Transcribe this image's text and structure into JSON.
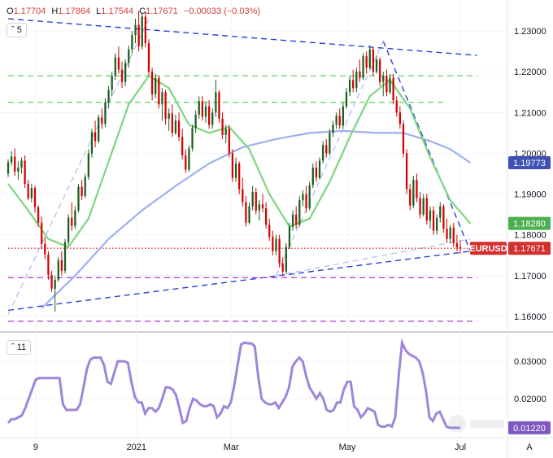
{
  "header": {
    "o_label": "O",
    "o_value": "1.17704",
    "h_label": "H",
    "h_value": "1.17864",
    "l_label": "L",
    "l_value": "1.17544",
    "c_label": "C",
    "c_value": "1.17671",
    "change": "−0.00033 (−0.03%)",
    "main_period": "5",
    "sub_period": "11",
    "icons": [
      "chevron-up-icon",
      "chevron-up-icon"
    ]
  },
  "colors": {
    "bull": "#1b5e20",
    "bear": "#d50000",
    "sma_fast": "#7ed67e",
    "sma_slow": "#9db0ee",
    "trend": "#2a3fd6",
    "support": "#6bd86b",
    "level": "#b24bd6",
    "last": "#d32f2f",
    "indicator": "#9e86d9"
  },
  "badges": {
    "symbol": "EURUSD",
    "last": "1.17671",
    "sma_fast": "1.18280",
    "sma_slow": "1.19773",
    "indicator": "0.01220"
  },
  "chart_data": [
    {
      "type": "candlestick",
      "title": "EURUSD",
      "x_ticks": [
        "9",
        "2021",
        "Mar",
        "May",
        "Jul"
      ],
      "y_ticks": [
        "1.23000",
        "1.22000",
        "1.21000",
        "1.20000",
        "1.19000",
        "1.18000",
        "1.17000",
        "1.16000"
      ],
      "ylim": [
        1.157,
        1.236
      ],
      "candles": [
        [
          1.195,
          1.1985,
          1.1942,
          1.1978
        ],
        [
          1.1978,
          1.2005,
          1.197,
          1.1992
        ],
        [
          1.1992,
          1.2012,
          1.1945,
          1.1955
        ],
        [
          1.1955,
          1.198,
          1.1935,
          1.1965
        ],
        [
          1.1965,
          1.199,
          1.195,
          1.1982
        ],
        [
          1.1982,
          1.1995,
          1.1915,
          1.1925
        ],
        [
          1.1925,
          1.1935,
          1.1885,
          1.189
        ],
        [
          1.189,
          1.1925,
          1.188,
          1.1915
        ],
        [
          1.1915,
          1.192,
          1.1855,
          1.1868
        ],
        [
          1.1868,
          1.1872,
          1.182,
          1.183
        ],
        [
          1.183,
          1.1845,
          1.1765,
          1.1778
        ],
        [
          1.1778,
          1.1795,
          1.174,
          1.1752
        ],
        [
          1.1752,
          1.176,
          1.169,
          1.1702
        ],
        [
          1.1702,
          1.1712,
          1.166,
          1.1668
        ],
        [
          1.1668,
          1.17,
          1.1612,
          1.169
        ],
        [
          1.169,
          1.1745,
          1.1685,
          1.1738
        ],
        [
          1.1738,
          1.176,
          1.17,
          1.1712
        ],
        [
          1.1712,
          1.179,
          1.1705,
          1.1782
        ],
        [
          1.1782,
          1.185,
          1.1775,
          1.1842
        ],
        [
          1.1842,
          1.188,
          1.181,
          1.1822
        ],
        [
          1.1822,
          1.187,
          1.1815,
          1.186
        ],
        [
          1.186,
          1.1925,
          1.1855,
          1.1918
        ],
        [
          1.1918,
          1.1935,
          1.1885,
          1.1895
        ],
        [
          1.1895,
          1.195,
          1.189,
          1.1942
        ],
        [
          1.1942,
          1.201,
          1.1935,
          1.2
        ],
        [
          1.2,
          1.206,
          1.199,
          1.2052
        ],
        [
          1.2052,
          1.208,
          1.2015,
          1.203
        ],
        [
          1.203,
          1.2095,
          1.2025,
          1.2088
        ],
        [
          1.2088,
          1.211,
          1.206,
          1.2072
        ],
        [
          1.2072,
          1.2135,
          1.2065,
          1.2125
        ],
        [
          1.2125,
          1.2165,
          1.211,
          1.2155
        ],
        [
          1.2155,
          1.22,
          1.214,
          1.219
        ],
        [
          1.219,
          1.2245,
          1.218,
          1.2235
        ],
        [
          1.2235,
          1.2262,
          1.2195,
          1.2205
        ],
        [
          1.2205,
          1.2225,
          1.216,
          1.2175
        ],
        [
          1.2175,
          1.223,
          1.2165,
          1.2222
        ],
        [
          1.2222,
          1.2265,
          1.221,
          1.2255
        ],
        [
          1.2255,
          1.23,
          1.2245,
          1.229
        ],
        [
          1.229,
          1.233,
          1.227,
          1.2315
        ],
        [
          1.2315,
          1.235,
          1.225,
          1.2262
        ],
        [
          1.2262,
          1.2345,
          1.2255,
          1.2335
        ],
        [
          1.2335,
          1.2348,
          1.226,
          1.227
        ],
        [
          1.227,
          1.228,
          1.219,
          1.22
        ],
        [
          1.22,
          1.221,
          1.213,
          1.2145
        ],
        [
          1.2145,
          1.2195,
          1.2135,
          1.2185
        ],
        [
          1.2185,
          1.219,
          1.211,
          1.212
        ],
        [
          1.212,
          1.216,
          1.208,
          1.215
        ],
        [
          1.215,
          1.2155,
          1.207,
          1.2085
        ],
        [
          1.2085,
          1.211,
          1.2055,
          1.2098
        ],
        [
          1.2098,
          1.212,
          1.204,
          1.205
        ],
        [
          1.205,
          1.2095,
          1.2045,
          1.208
        ],
        [
          1.208,
          1.21,
          1.203,
          1.204
        ],
        [
          1.204,
          1.206,
          1.1985,
          1.1995
        ],
        [
          1.1995,
          1.201,
          1.1952,
          1.196
        ],
        [
          1.196,
          1.202,
          1.1955,
          1.2012
        ],
        [
          1.2012,
          1.207,
          1.2005,
          1.2062
        ],
        [
          1.2062,
          1.2105,
          1.205,
          1.2095
        ],
        [
          1.2095,
          1.214,
          1.2085,
          1.2128
        ],
        [
          1.2128,
          1.214,
          1.208,
          1.209
        ],
        [
          1.209,
          1.2125,
          1.2075,
          1.2115
        ],
        [
          1.2115,
          1.213,
          1.206,
          1.207
        ],
        [
          1.207,
          1.211,
          1.206,
          1.21
        ],
        [
          1.21,
          1.218,
          1.209,
          1.215
        ],
        [
          1.215,
          1.2155,
          1.2075,
          1.2085
        ],
        [
          1.2085,
          1.21,
          1.2035,
          1.2045
        ],
        [
          1.2045,
          1.207,
          1.2025,
          1.206
        ],
        [
          1.206,
          1.207,
          1.199,
          1.2
        ],
        [
          1.2,
          1.201,
          1.193,
          1.194
        ],
        [
          1.194,
          1.199,
          1.193,
          1.1975
        ],
        [
          1.1975,
          1.198,
          1.19,
          1.1912
        ],
        [
          1.1912,
          1.194,
          1.187,
          1.188
        ],
        [
          1.188,
          1.1895,
          1.182,
          1.183
        ],
        [
          1.183,
          1.188,
          1.1825,
          1.187
        ],
        [
          1.187,
          1.192,
          1.186,
          1.1905
        ],
        [
          1.1905,
          1.1915,
          1.185,
          1.186
        ],
        [
          1.186,
          1.1885,
          1.1835,
          1.1875
        ],
        [
          1.1875,
          1.19,
          1.1855,
          1.1865
        ],
        [
          1.1865,
          1.188,
          1.1815,
          1.1825
        ],
        [
          1.1825,
          1.184,
          1.1785,
          1.1795
        ],
        [
          1.1795,
          1.181,
          1.175,
          1.176
        ],
        [
          1.176,
          1.18,
          1.175,
          1.179
        ],
        [
          1.179,
          1.18,
          1.172,
          1.173
        ],
        [
          1.173,
          1.1745,
          1.17,
          1.171
        ],
        [
          1.171,
          1.178,
          1.1705,
          1.177
        ],
        [
          1.177,
          1.183,
          1.1765,
          1.182
        ],
        [
          1.182,
          1.186,
          1.181,
          1.185
        ],
        [
          1.185,
          1.187,
          1.1815,
          1.1825
        ],
        [
          1.1825,
          1.1895,
          1.182,
          1.1885
        ],
        [
          1.1885,
          1.191,
          1.187,
          1.19
        ],
        [
          1.19,
          1.192,
          1.1855,
          1.1865
        ],
        [
          1.1865,
          1.193,
          1.186,
          1.1922
        ],
        [
          1.1922,
          1.1975,
          1.1915,
          1.1965
        ],
        [
          1.1965,
          1.198,
          1.193,
          1.194
        ],
        [
          1.194,
          1.199,
          1.1935,
          1.1982
        ],
        [
          1.1982,
          1.203,
          1.1975,
          1.202
        ],
        [
          1.202,
          1.2035,
          1.199,
          1.2
        ],
        [
          1.2,
          1.206,
          1.1995,
          1.205
        ],
        [
          1.205,
          1.208,
          1.204,
          1.207
        ],
        [
          1.207,
          1.21,
          1.206,
          1.2092
        ],
        [
          1.2092,
          1.211,
          1.206,
          1.2068
        ],
        [
          1.2068,
          1.2125,
          1.206,
          1.2115
        ],
        [
          1.2115,
          1.216,
          1.211,
          1.215
        ],
        [
          1.215,
          1.219,
          1.214,
          1.218
        ],
        [
          1.218,
          1.2205,
          1.215,
          1.216
        ],
        [
          1.216,
          1.221,
          1.215,
          1.22
        ],
        [
          1.22,
          1.223,
          1.2175,
          1.2185
        ],
        [
          1.2185,
          1.2245,
          1.218,
          1.2238
        ],
        [
          1.2238,
          1.225,
          1.2195,
          1.221
        ],
        [
          1.221,
          1.2265,
          1.2205,
          1.2255
        ],
        [
          1.2255,
          1.226,
          1.219,
          1.22
        ],
        [
          1.22,
          1.224,
          1.2195,
          1.223
        ],
        [
          1.223,
          1.2235,
          1.2165,
          1.2175
        ],
        [
          1.2175,
          1.22,
          1.214,
          1.219
        ],
        [
          1.219,
          1.2205,
          1.214,
          1.215
        ],
        [
          1.215,
          1.2195,
          1.2145,
          1.2185
        ],
        [
          1.2185,
          1.2195,
          1.212,
          1.213
        ],
        [
          1.213,
          1.214,
          1.209,
          1.21
        ],
        [
          1.21,
          1.2115,
          1.206,
          1.2072
        ],
        [
          1.2072,
          1.208,
          1.199,
          1.2
        ],
        [
          1.2,
          1.201,
          1.19,
          1.1912
        ],
        [
          1.1912,
          1.1925,
          1.186,
          1.1872
        ],
        [
          1.1872,
          1.1945,
          1.1865,
          1.1935
        ],
        [
          1.1935,
          1.195,
          1.188,
          1.189
        ],
        [
          1.189,
          1.1905,
          1.184,
          1.185
        ],
        [
          1.185,
          1.19,
          1.1845,
          1.189
        ],
        [
          1.189,
          1.19,
          1.1825,
          1.1835
        ],
        [
          1.1835,
          1.187,
          1.1815,
          1.186
        ],
        [
          1.186,
          1.187,
          1.18,
          1.181
        ],
        [
          1.181,
          1.185,
          1.18,
          1.1842
        ],
        [
          1.1842,
          1.188,
          1.183,
          1.187
        ],
        [
          1.187,
          1.1875,
          1.1805,
          1.1815
        ],
        [
          1.1815,
          1.184,
          1.178,
          1.179
        ],
        [
          1.179,
          1.1825,
          1.178,
          1.1818
        ],
        [
          1.1818,
          1.183,
          1.177,
          1.178
        ],
        [
          1.178,
          1.18,
          1.176,
          1.177
        ],
        [
          1.177,
          1.1786,
          1.1754,
          1.1767
        ]
      ],
      "sma_fast": [
        [
          0,
          1.1925
        ],
        [
          6,
          1.186
        ],
        [
          12,
          1.179
        ],
        [
          18,
          1.177
        ],
        [
          24,
          1.184
        ],
        [
          30,
          1.198
        ],
        [
          36,
          1.212
        ],
        [
          42,
          1.219
        ],
        [
          48,
          1.216
        ],
        [
          54,
          1.207
        ],
        [
          60,
          1.205
        ],
        [
          66,
          1.2065
        ],
        [
          72,
          1.201
        ],
        [
          78,
          1.19
        ],
        [
          84,
          1.182
        ],
        [
          90,
          1.184
        ],
        [
          96,
          1.193
        ],
        [
          102,
          1.204
        ],
        [
          108,
          1.214
        ],
        [
          114,
          1.218
        ],
        [
          120,
          1.211
        ],
        [
          126,
          1.199
        ],
        [
          132,
          1.1885
        ],
        [
          138,
          1.1828
        ]
      ],
      "sma_slow": [
        [
          10,
          1.162
        ],
        [
          20,
          1.17
        ],
        [
          30,
          1.179
        ],
        [
          40,
          1.186
        ],
        [
          50,
          1.192
        ],
        [
          60,
          1.1975
        ],
        [
          70,
          1.2015
        ],
        [
          80,
          1.2035
        ],
        [
          90,
          1.205
        ],
        [
          100,
          1.2055
        ],
        [
          110,
          1.205
        ],
        [
          118,
          1.205
        ],
        [
          126,
          1.203
        ],
        [
          132,
          1.201
        ],
        [
          138,
          1.1977
        ]
      ],
      "lines": [
        {
          "style": "dashed",
          "color": "trend",
          "x1": 0,
          "y1": 1.233,
          "x2": 140,
          "y2": 1.224
        },
        {
          "style": "dashed",
          "color": "trend",
          "x1": 0,
          "y1": 1.1615,
          "x2": 138,
          "y2": 1.176
        },
        {
          "style": "dashed",
          "color": "trend",
          "x1": 112,
          "y1": 1.2275,
          "x2": 138,
          "y2": 1.176
        },
        {
          "style": "dashed",
          "color": "sma_slow",
          "x1": 0,
          "y1": 1.1605,
          "x2": 42,
          "y2": 1.233
        },
        {
          "style": "dashed",
          "color": "sma_slow",
          "x1": 80,
          "y1": 1.17,
          "x2": 112,
          "y2": 1.2275
        },
        {
          "style": "dashed",
          "color": "sma_slow",
          "x1": 80,
          "y1": 1.17,
          "x2": 138,
          "y2": 1.179
        },
        {
          "style": "dashed",
          "color": "support",
          "x1": 0,
          "y1": 1.219,
          "x2": 140,
          "y2": 1.219
        },
        {
          "style": "dashed",
          "color": "support",
          "x1": 0,
          "y1": 1.2125,
          "x2": 130,
          "y2": 1.2125
        },
        {
          "style": "dashed",
          "color": "level",
          "x1": 0,
          "y1": 1.1695,
          "x2": 140,
          "y2": 1.1695
        },
        {
          "style": "dashed",
          "color": "level",
          "x1": 0,
          "y1": 1.1588,
          "x2": 140,
          "y2": 1.1588
        },
        {
          "style": "dotted",
          "color": "last",
          "x1": 0,
          "y1": 1.17671,
          "x2": 140,
          "y2": 1.17671
        }
      ]
    },
    {
      "type": "line",
      "title": "",
      "y_ticks": [
        "0.03000",
        "0.02000"
      ],
      "ylim": [
        0.01,
        0.037
      ],
      "values": [
        0.0135,
        0.0145,
        0.0145,
        0.015,
        0.0155,
        0.0175,
        0.02,
        0.0225,
        0.025,
        0.0255,
        0.0255,
        0.0255,
        0.0255,
        0.0255,
        0.0255,
        0.0255,
        0.0185,
        0.017,
        0.017,
        0.017,
        0.017,
        0.0185,
        0.023,
        0.028,
        0.0305,
        0.031,
        0.031,
        0.031,
        0.029,
        0.0245,
        0.024,
        0.027,
        0.03,
        0.03,
        0.03,
        0.0295,
        0.0245,
        0.0205,
        0.019,
        0.019,
        0.016,
        0.0175,
        0.0175,
        0.0165,
        0.0175,
        0.02,
        0.023,
        0.023,
        0.0225,
        0.021,
        0.0175,
        0.0135,
        0.014,
        0.0175,
        0.02,
        0.0195,
        0.0185,
        0.018,
        0.018,
        0.0185,
        0.018,
        0.015,
        0.016,
        0.018,
        0.0175,
        0.019,
        0.0235,
        0.029,
        0.0345,
        0.035,
        0.0348,
        0.0348,
        0.034,
        0.026,
        0.02,
        0.019,
        0.0185,
        0.0185,
        0.019,
        0.0175,
        0.019,
        0.0205,
        0.023,
        0.0285,
        0.03,
        0.031,
        0.03,
        0.026,
        0.023,
        0.0215,
        0.02,
        0.0215,
        0.02,
        0.017,
        0.0165,
        0.017,
        0.019,
        0.019,
        0.0225,
        0.0245,
        0.0245,
        0.018,
        0.017,
        0.015,
        0.016,
        0.0175,
        0.017,
        0.0165,
        0.013,
        0.0125,
        0.0125,
        0.013,
        0.0125,
        0.015,
        0.026,
        0.035,
        0.033,
        0.032,
        0.0315,
        0.031,
        0.03,
        0.027,
        0.022,
        0.015,
        0.014,
        0.016,
        0.0165,
        0.0145,
        0.0125,
        0.0122,
        0.0122,
        0.0122,
        0.0122
      ]
    }
  ]
}
